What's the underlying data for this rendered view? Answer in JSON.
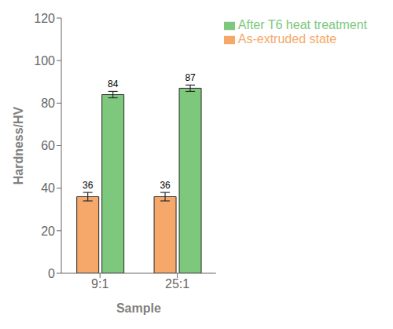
{
  "chart_data": {
    "type": "bar",
    "categories": [
      "9:1",
      "25:1"
    ],
    "series": [
      {
        "name": "As-extruded state",
        "color": "#F5A86A",
        "values": [
          36,
          36
        ],
        "errors": [
          2.0,
          2.0
        ]
      },
      {
        "name": "After T6 heat treatment",
        "color": "#7DC87D",
        "values": [
          84,
          87
        ],
        "errors": [
          1.5,
          1.5
        ]
      }
    ],
    "xlabel": "Sample",
    "ylabel": "Hardness/HV",
    "ylim": [
      0,
      120
    ],
    "yticks": [
      0,
      20,
      40,
      60,
      80,
      100,
      120
    ],
    "grid": false,
    "legend": "upper right",
    "data_labels": true
  }
}
